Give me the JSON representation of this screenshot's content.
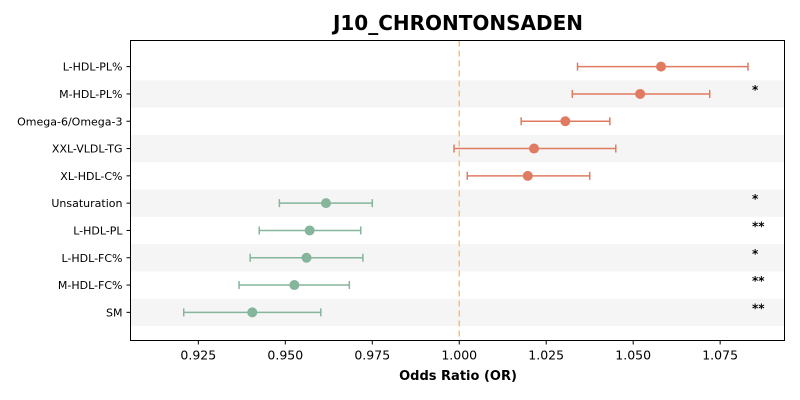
{
  "chart_data": {
    "type": "forest",
    "title": "J10_CHRONTONSADEN",
    "xlabel": "Odds Ratio (OR)",
    "xlim": [
      0.9055,
      1.0935
    ],
    "xticks": [
      "0.925",
      "0.950",
      "0.975",
      "1.000",
      "1.025",
      "1.050",
      "1.075"
    ],
    "xtick_values": [
      0.925,
      0.95,
      0.975,
      1.0,
      1.025,
      1.05,
      1.075
    ],
    "reference_line": 1.0,
    "colors": {
      "positive": "#E07B62",
      "negative": "#85B59B",
      "reference": "#F5C27A",
      "band": "#F5F5F5"
    },
    "rows": [
      {
        "label": "L-HDL-PL%",
        "or": 1.058,
        "lo": 1.034,
        "hi": 1.083,
        "sig": ""
      },
      {
        "label": "M-HDL-PL%",
        "or": 1.052,
        "lo": 1.0325,
        "hi": 1.072,
        "sig": "*"
      },
      {
        "label": "Omega-6/Omega-3",
        "or": 1.0305,
        "lo": 1.0178,
        "hi": 1.0433,
        "sig": ""
      },
      {
        "label": "XXL-VLDL-TG",
        "or": 1.0215,
        "lo": 0.9985,
        "hi": 1.045,
        "sig": ""
      },
      {
        "label": "XL-HDL-C%",
        "or": 1.0197,
        "lo": 1.0023,
        "hi": 1.0375,
        "sig": ""
      },
      {
        "label": "Unsaturation",
        "or": 0.9617,
        "lo": 0.9483,
        "hi": 0.975,
        "sig": "*"
      },
      {
        "label": "L-HDL-PL",
        "or": 0.957,
        "lo": 0.9425,
        "hi": 0.9717,
        "sig": "**"
      },
      {
        "label": "L-HDL-FC%",
        "or": 0.9561,
        "lo": 0.9399,
        "hi": 0.9723,
        "sig": "*"
      },
      {
        "label": "M-HDL-FC%",
        "or": 0.9526,
        "lo": 0.9367,
        "hi": 0.9684,
        "sig": "**"
      },
      {
        "label": "SM",
        "or": 0.9405,
        "lo": 0.9208,
        "hi": 0.9602,
        "sig": "**"
      }
    ]
  }
}
